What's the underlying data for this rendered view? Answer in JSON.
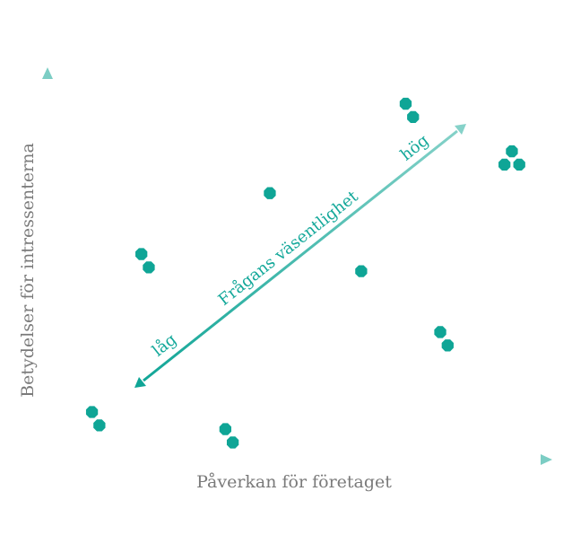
{
  "colors": {
    "accent": "#0fa596",
    "accent_light": "#7ccdc4",
    "label_gray": "#7a7a7a"
  },
  "chart_data": {
    "type": "scatter",
    "title": "",
    "xlabel": "Påverkan för företaget",
    "ylabel": "Betydelser för intressenterna",
    "xlim": [
      0,
      100
    ],
    "ylim": [
      0,
      100
    ],
    "grid": false,
    "points": [
      {
        "x": 9,
        "y": 12.5
      },
      {
        "x": 10.5,
        "y": 9
      },
      {
        "x": 19,
        "y": 54
      },
      {
        "x": 20.5,
        "y": 50.5
      },
      {
        "x": 36,
        "y": 8
      },
      {
        "x": 37.5,
        "y": 4.5
      },
      {
        "x": 45,
        "y": 70
      },
      {
        "x": 63.5,
        "y": 49.5
      },
      {
        "x": 72.5,
        "y": 93.5
      },
      {
        "x": 74,
        "y": 90
      },
      {
        "x": 79.5,
        "y": 33.5
      },
      {
        "x": 81,
        "y": 30
      },
      {
        "x": 94,
        "y": 81
      },
      {
        "x": 92.5,
        "y": 77.5
      },
      {
        "x": 95.5,
        "y": 77.5
      }
    ],
    "diagonal": {
      "label": "Frågans väsentlighet",
      "low_label": "låg",
      "high_label": "hög"
    }
  }
}
